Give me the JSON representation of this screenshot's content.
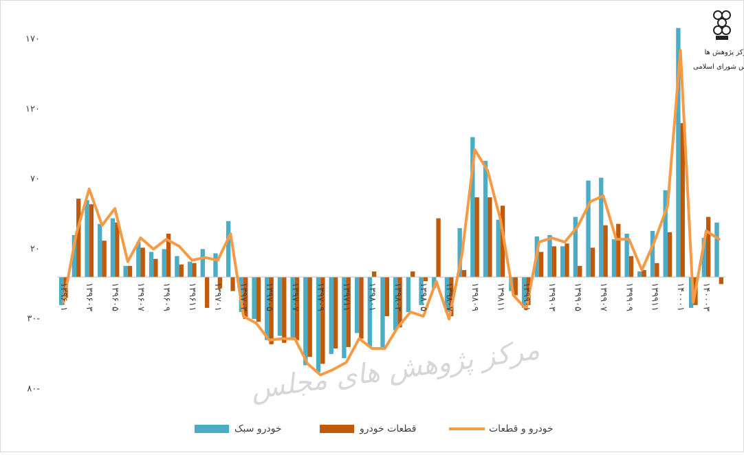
{
  "chart_data": {
    "type": "bar-line",
    "categories": [
      "۱۳۹۶۰۱",
      null,
      "۱۳۹۶۰۳",
      null,
      "۱۳۹۶۰۵",
      null,
      "۱۳۹۶۰۷",
      null,
      "۱۳۹۶۰۹",
      null,
      "۱۳۹۶۱۱",
      null,
      "۱۳۹۷۰۱",
      null,
      "۱۳۹۷۰۳",
      null,
      "۱۳۹۷۰۵",
      null,
      "۱۳۹۷۰۷",
      null,
      "۱۳۹۷۰۹",
      null,
      "۱۳۹۷۱۱",
      null,
      "۱۳۹۸۰۱",
      null,
      "۱۳۹۸۰۳",
      null,
      "۱۳۹۸۰۵",
      null,
      "۱۳۹۸۰۷",
      null,
      "۱۳۹۸۰۹",
      null,
      "۱۳۹۸۱۱",
      null,
      "۱۳۹۹۰۱",
      null,
      "۱۳۹۹۰۳",
      null,
      "۱۳۹۹۰۵",
      null,
      "۱۳۹۹۰۷",
      null,
      "۱۳۹۹۰۹",
      null,
      "۱۳۹۹۱۱",
      null,
      "۱۴۰۰۰۱",
      null,
      "۱۴۰۰۰۳",
      null
    ],
    "series": [
      {
        "name": "خودرو سبک",
        "type": "bar",
        "color": "#4bacc6",
        "values": [
          -20,
          30,
          55,
          38,
          42,
          8,
          25,
          18,
          20,
          15,
          11,
          20,
          17,
          40,
          -25,
          -30,
          -45,
          -42,
          -45,
          -63,
          -68,
          -55,
          -58,
          -40,
          -50,
          -50,
          -38,
          -25,
          -20,
          -8,
          -25,
          35,
          100,
          83,
          41,
          -10,
          -22,
          29,
          30,
          22,
          43,
          69,
          71,
          27,
          31,
          4,
          33,
          62,
          178,
          -22,
          28,
          39
        ]
      },
      {
        "name": "قطعات خودرو",
        "type": "bar",
        "color": "#c05a0b",
        "values": [
          -15,
          56,
          52,
          26,
          39,
          8,
          21,
          13,
          31,
          9,
          10,
          -22,
          -8,
          -10,
          -30,
          -32,
          -48,
          -47,
          -45,
          -57,
          -62,
          -51,
          -50,
          -44,
          4,
          -28,
          -36,
          4,
          -3,
          42,
          -28,
          5,
          57,
          57,
          51,
          -13,
          -20,
          18,
          22,
          24,
          8,
          21,
          37,
          38,
          15,
          5,
          10,
          32,
          110,
          -20,
          43,
          -5
        ]
      },
      {
        "name": "خودرو و قطعات",
        "type": "line",
        "color": "#f79a46",
        "values": [
          -18,
          31,
          63,
          37,
          49,
          11,
          28,
          20,
          27,
          22,
          12,
          14,
          12,
          31,
          -28,
          -33,
          -45,
          -44,
          -44,
          -62,
          -70,
          -66,
          -61,
          -44,
          -51,
          -51,
          -36,
          -25,
          -28,
          -3,
          -30,
          16,
          91,
          76,
          41,
          -13,
          -23,
          25,
          28,
          25,
          36,
          54,
          58,
          27,
          27,
          5,
          26,
          51,
          162,
          -18,
          33,
          27
        ]
      }
    ],
    "ylim": [
      -80,
      170
    ],
    "yticks": [
      {
        "value": -80,
        "label": "۸۰-"
      },
      {
        "value": -30,
        "label": "۳۰-"
      },
      {
        "value": 20,
        "label": "۲۰"
      },
      {
        "value": 70,
        "label": "۷۰"
      },
      {
        "value": 120,
        "label": "۱۲۰"
      },
      {
        "value": 170,
        "label": "۱۷۰"
      }
    ],
    "grid": false,
    "legend": "bottom",
    "watermark": "مرکز پژوهش های مجلس",
    "logo_text": [
      "مرکز پژوهش ها",
      "مجلس شورای اسلامی"
    ]
  }
}
